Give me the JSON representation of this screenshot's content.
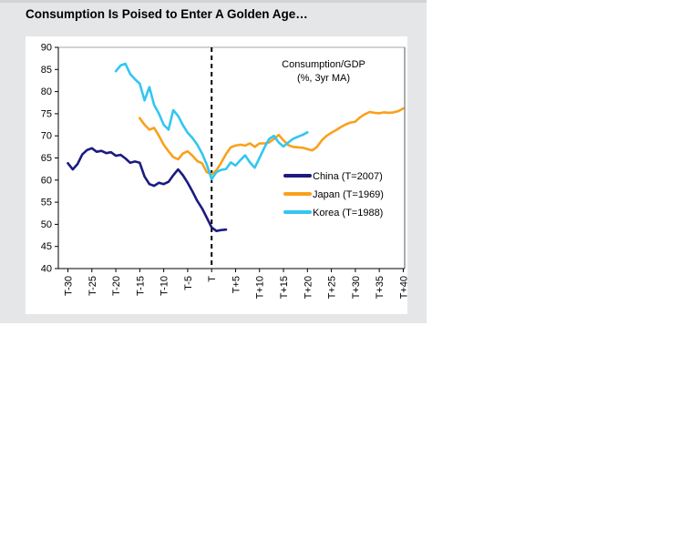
{
  "card": {
    "title": "Consumption Is Poised to Enter A Golden Age…"
  },
  "chart_data": {
    "type": "line",
    "title": "Consumption Is Poised to Enter A Golden Age…",
    "annotation": {
      "line1": "Consumption/GDP",
      "line2": "(%, 3yr MA)"
    },
    "grid": false,
    "legend_position": "middle-right",
    "x_axis": {
      "domain": [
        -32,
        40.3
      ],
      "tick_values": [
        -30,
        -25,
        -20,
        -15,
        -10,
        -5,
        0,
        5,
        10,
        15,
        20,
        25,
        30,
        35,
        40
      ],
      "tick_labels": [
        "T-30",
        "T-25",
        "T-20",
        "T-15",
        "T-10",
        "T-5",
        "T",
        "T+5",
        "T+10",
        "T+15",
        "T+20",
        "T+25",
        "T+30",
        "T+35",
        "T+40"
      ],
      "label_rotation": -90
    },
    "y_axis": {
      "min": 40,
      "max": 90,
      "tick_step": 5,
      "tick_labels": [
        "90",
        "85",
        "80",
        "75",
        "70",
        "65",
        "60",
        "55",
        "50",
        "45",
        "40"
      ]
    },
    "reference_line": {
      "x": 0,
      "style": "dashed",
      "color": "#000000"
    },
    "series": [
      {
        "name": "China (T=2007)",
        "color": "#1b1b80",
        "x_start": -30,
        "x_step": 1,
        "values": [
          63.8,
          62.4,
          63.6,
          65.8,
          66.8,
          67.2,
          66.4,
          66.6,
          66.1,
          66.3,
          65.5,
          65.7,
          64.9,
          63.9,
          64.2,
          63.9,
          60.8,
          59.1,
          58.7,
          59.4,
          59.1,
          59.6,
          61.1,
          62.4,
          61.1,
          59.4,
          57.4,
          55.3,
          53.6,
          51.5,
          49.3,
          48.5,
          48.7,
          48.8
        ]
      },
      {
        "name": "Japan (T=1969)",
        "color": "#f9a11b",
        "x_start": -15,
        "x_step": 1,
        "values": [
          74.0,
          72.5,
          71.4,
          71.8,
          70.0,
          68.0,
          66.5,
          65.2,
          64.7,
          66.0,
          66.5,
          65.5,
          64.3,
          63.8,
          61.8,
          61.3,
          62.2,
          63.9,
          65.9,
          67.4,
          67.8,
          68.0,
          67.8,
          68.3,
          67.5,
          68.3,
          68.3,
          68.5,
          69.3,
          70.2,
          69.0,
          67.9,
          67.5,
          67.4,
          67.3,
          67.0,
          66.7,
          67.5,
          69.0,
          70.0,
          70.7,
          71.3,
          72.0,
          72.6,
          73.0,
          73.2,
          74.2,
          74.9,
          75.4,
          75.2,
          75.1,
          75.3,
          75.2,
          75.3,
          75.6,
          76.2
        ]
      },
      {
        "name": "Korea (T=1988)",
        "color": "#33c6f0",
        "x_start": -20,
        "x_step": 1,
        "values": [
          84.6,
          85.9,
          86.3,
          84.0,
          82.8,
          81.8,
          78.0,
          81.0,
          77.0,
          75.0,
          72.5,
          71.4,
          75.8,
          74.5,
          72.4,
          70.7,
          69.5,
          68.0,
          66.0,
          63.5,
          60.2,
          61.8,
          62.3,
          62.5,
          64.0,
          63.3,
          64.5,
          65.6,
          64.0,
          62.8,
          65.0,
          67.3,
          69.3,
          70.0,
          68.5,
          67.6,
          68.5,
          69.3,
          69.8,
          70.2,
          70.8
        ]
      }
    ]
  }
}
